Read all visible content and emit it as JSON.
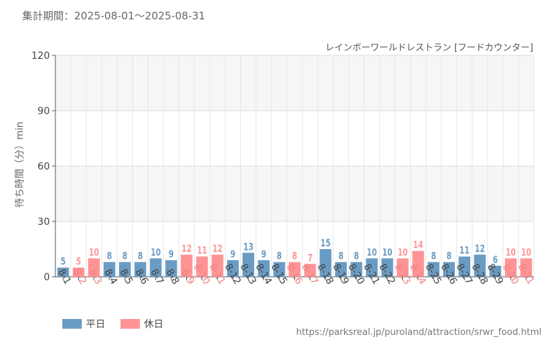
{
  "period_text": "集計期間：2025-08-01～2025-08-31",
  "source_text": "https://parksreal.jp/puroland/attraction/srwr_food.html",
  "chart_data": {
    "type": "bar",
    "title": "レインボーワールドレストラン [フードカウンター]",
    "ylabel": "待ち時間（分）min",
    "xlabel": "",
    "ylim": [
      0,
      120
    ],
    "yticks": [
      0,
      30,
      60,
      90,
      120
    ],
    "grid": true,
    "legend_position": "bottom-left",
    "categories": [
      "8-1",
      "8-2",
      "8-3",
      "8-4",
      "8-5",
      "8-6",
      "8-7",
      "8-8",
      "8-9",
      "8-10",
      "8-11",
      "8-12",
      "8-13",
      "8-14",
      "8-15",
      "8-16",
      "8-17",
      "8-18",
      "8-19",
      "8-20",
      "8-21",
      "8-22",
      "8-23",
      "8-24",
      "8-25",
      "8-26",
      "8-27",
      "8-28",
      "8-29",
      "8-30",
      "8-31"
    ],
    "values": [
      5,
      5,
      10,
      8,
      8,
      8,
      10,
      9,
      12,
      11,
      12,
      9,
      13,
      9,
      8,
      8,
      7,
      15,
      8,
      8,
      10,
      10,
      10,
      14,
      8,
      8,
      11,
      12,
      6,
      10,
      10
    ],
    "day_type": [
      "weekday",
      "holiday",
      "holiday",
      "weekday",
      "weekday",
      "weekday",
      "weekday",
      "weekday",
      "holiday",
      "holiday",
      "holiday",
      "weekday",
      "weekday",
      "weekday",
      "weekday",
      "holiday",
      "holiday",
      "weekday",
      "weekday",
      "weekday",
      "weekday",
      "weekday",
      "holiday",
      "holiday",
      "weekday",
      "weekday",
      "weekday",
      "weekday",
      "weekday",
      "holiday",
      "holiday"
    ],
    "legend": [
      {
        "key": "weekday",
        "name": "平日",
        "color": "#6a9bc3"
      },
      {
        "key": "holiday",
        "name": "休日",
        "color": "#ff9496"
      }
    ],
    "axis_colors": {
      "weekday": "#444444",
      "holiday": "#f08080"
    }
  }
}
